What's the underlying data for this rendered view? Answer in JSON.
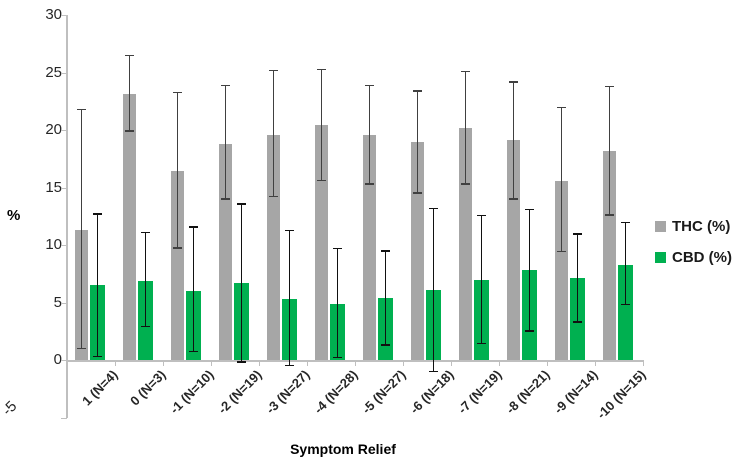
{
  "chart_data": {
    "type": "bar",
    "title": "",
    "xlabel": "Symptom Relief",
    "ylabel": "%",
    "ylim": [
      -5,
      30
    ],
    "y_ticks": [
      30,
      25,
      20,
      15,
      10,
      5,
      0,
      -5
    ],
    "grid": false,
    "legend_position": "right",
    "categories": [
      "1 (N=4)",
      "0 (N=3)",
      "-1 (N=10)",
      "-2 (N=19)",
      "-3 (N=27)",
      "-4 (N=28)",
      "-5 (N=27)",
      "-6 (N=18)",
      "-7 (N=19)",
      "-8 (N=21)",
      "-9 (N=14)",
      "-10 (N=15)"
    ],
    "series": [
      {
        "name": "THC (%)",
        "color": "#a6a6a6",
        "error_color": "#404040",
        "values": [
          11.3,
          23.1,
          16.4,
          18.8,
          19.6,
          20.4,
          19.6,
          19.0,
          20.2,
          19.1,
          15.6,
          18.2
        ],
        "error_high": [
          21.8,
          26.5,
          23.3,
          23.9,
          25.2,
          25.3,
          23.9,
          23.4,
          25.1,
          24.2,
          22.0,
          23.8
        ],
        "error_low": [
          1.0,
          19.9,
          9.7,
          14.0,
          14.2,
          15.6,
          15.3,
          14.5,
          15.3,
          14.0,
          9.4,
          12.6
        ]
      },
      {
        "name": "CBD (%)",
        "color": "#00b050",
        "error_color": "#111111",
        "values": [
          6.5,
          6.9,
          6.0,
          6.7,
          5.3,
          4.9,
          5.4,
          6.1,
          7.0,
          7.8,
          7.1,
          8.3
        ],
        "error_high": [
          12.7,
          11.1,
          11.6,
          13.6,
          11.3,
          9.7,
          9.5,
          13.2,
          12.6,
          13.1,
          11.0,
          12.0
        ],
        "error_low": [
          0.3,
          2.9,
          0.7,
          -0.2,
          -0.5,
          0.2,
          1.3,
          -1.0,
          1.4,
          2.5,
          3.3,
          4.8
        ]
      }
    ]
  }
}
